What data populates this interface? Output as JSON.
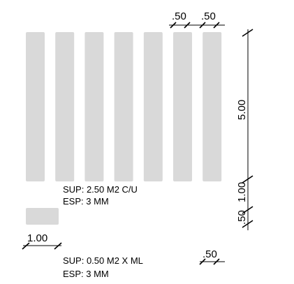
{
  "colors": {
    "strip_fill": "#d9d9d9",
    "line": "#000000",
    "background": "#ffffff"
  },
  "strips": {
    "count": 7
  },
  "small_piece": {
    "count": 1
  },
  "dimensions": {
    "strip_width_1": ".50",
    "strip_width_2": ".50",
    "height": "5.00",
    "side_a": ".50",
    "side_b": "1.00",
    "small_width": "1.00",
    "small_height": ".50"
  },
  "notes": {
    "strips_area": "SUP:  2.50 M2 C/U",
    "strips_thickness": "ESP: 3 MM",
    "small_area": "SUP:  0.50 M2 X ML",
    "small_thickness": "ESP: 3 MM"
  }
}
